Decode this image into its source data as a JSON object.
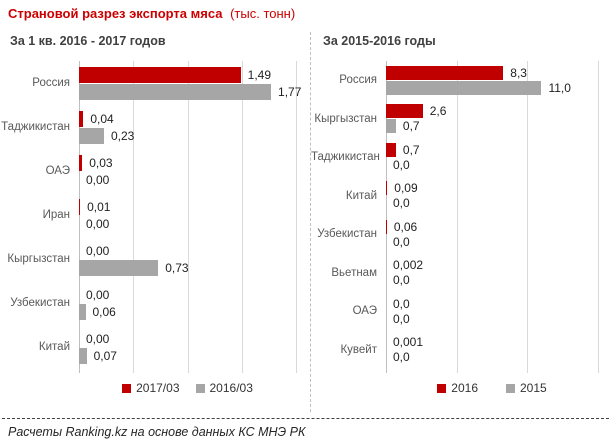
{
  "report": {
    "title": "Страновой разрез экспорта мяса",
    "unit_suffix": "(тыс. тонн)",
    "footer": "Расчеты Ranking.kz на основе данных КС МНЭ РК"
  },
  "colors": {
    "accent_red": "#C00000",
    "bar_gray": "#A6A6A6",
    "gridline": "#D9D9D9"
  },
  "chart_data": [
    {
      "type": "bar",
      "orientation": "horizontal",
      "title": "За 1 кв. 2016 - 2017 годов",
      "categories": [
        "Россия",
        "Таджикистан",
        "ОАЭ",
        "Иран",
        "Кыргызстан",
        "Узбекистан",
        "Китай"
      ],
      "series": [
        {
          "name": "2017/03",
          "color": "#C00000",
          "values": [
            1.49,
            0.04,
            0.03,
            0.01,
            0.0,
            0.0,
            0.0
          ],
          "labels": [
            "1,49",
            "0,04",
            "0,03",
            "0,01",
            "0,00",
            "0,00",
            "0,00"
          ]
        },
        {
          "name": "2016/03",
          "color": "#A6A6A6",
          "values": [
            1.77,
            0.23,
            0.0,
            0.0,
            0.73,
            0.06,
            0.07
          ],
          "labels": [
            "1,77",
            "0,23",
            "0,00",
            "0,00",
            "0,73",
            "0,06",
            "0,07"
          ]
        }
      ],
      "xlim": [
        0,
        2.0
      ],
      "grid_step": 0.5,
      "grid": true,
      "legend_position": "bottom"
    },
    {
      "type": "bar",
      "orientation": "horizontal",
      "title": "За 2015-2016 годы",
      "categories": [
        "Россия",
        "Кыргызстан",
        "Таджикистан",
        "Китай",
        "Узбекистан",
        "Вьетнам",
        "ОАЭ",
        "Кувейт"
      ],
      "series": [
        {
          "name": "2016",
          "color": "#C00000",
          "values": [
            8.3,
            2.6,
            0.7,
            0.09,
            0.06,
            0.002,
            0.0,
            0.001
          ],
          "labels": [
            "8,3",
            "2,6",
            "0,7",
            "0,09",
            "0,06",
            "0,002",
            "0,0",
            "0,001"
          ]
        },
        {
          "name": "2015",
          "color": "#A6A6A6",
          "values": [
            11.0,
            0.7,
            0.0,
            0.0,
            0.0,
            0.0,
            0.0,
            0.0
          ],
          "labels": [
            "11,0",
            "0,7",
            "0,0",
            "0,0",
            "0,0",
            "0,0",
            "0,0",
            "0,0"
          ]
        }
      ],
      "xlim": [
        0,
        15
      ],
      "grid_step": 5,
      "grid": true,
      "legend_position": "bottom"
    }
  ]
}
